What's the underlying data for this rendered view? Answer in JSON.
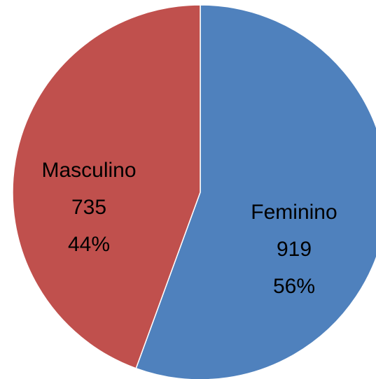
{
  "chart_data": {
    "type": "pie",
    "categories": [
      "Feminino",
      "Masculino"
    ],
    "values": [
      919,
      735
    ],
    "percents": [
      56,
      44
    ],
    "percent_labels": [
      "56%",
      "44%"
    ],
    "colors": [
      "#4f81bd",
      "#c0504d"
    ]
  }
}
